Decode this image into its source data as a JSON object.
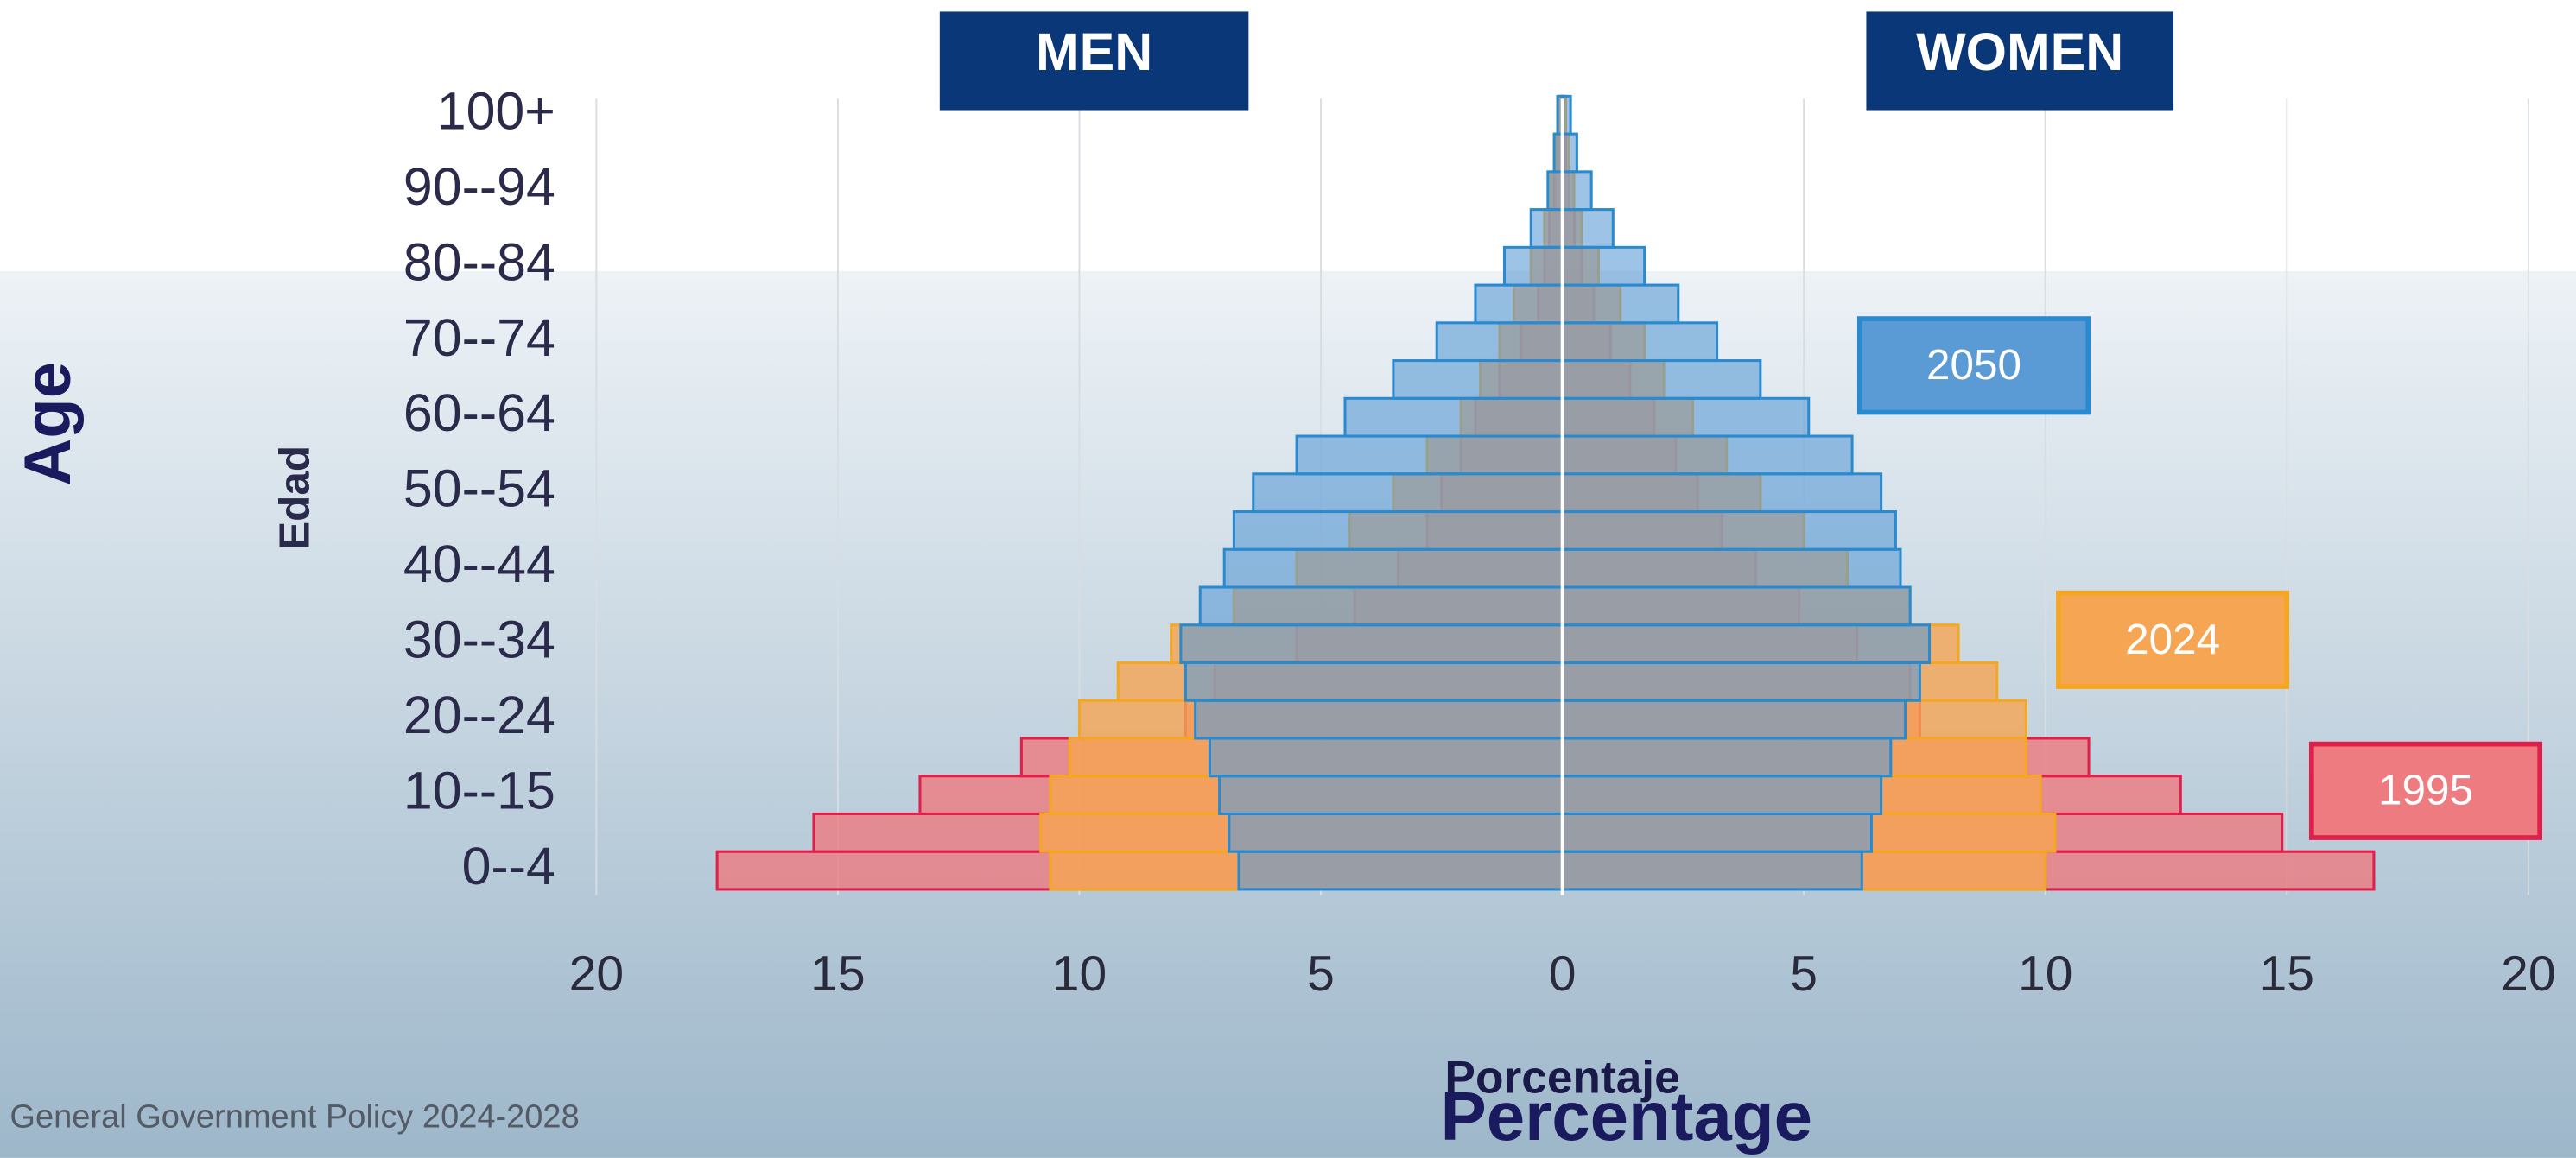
{
  "chart_data": {
    "type": "pyramid",
    "headers": [
      "MEN",
      "WOMEN"
    ],
    "y_label_outer": "Age",
    "y_label": "Edad",
    "x_label": "Porcentaje",
    "x_label_outer": "Percentage",
    "footer": "General Government Policy 2024-2028",
    "categories": [
      "0--4",
      null,
      "10--15",
      null,
      "20--24",
      null,
      "30--34",
      null,
      "40--44",
      null,
      "50--54",
      null,
      "60--64",
      null,
      "70--74",
      null,
      "80--84",
      null,
      "90--94",
      null,
      "100+"
    ],
    "series": [
      {
        "name": "1995",
        "color": "#ee7b80",
        "stroke": "#e0204a",
        "men": [
          17.5,
          15.5,
          13.3,
          11.2,
          7.8,
          7.2,
          5.5,
          4.3,
          3.4,
          2.8,
          2.5,
          2.1,
          1.8,
          1.3,
          0.85,
          0.5,
          0.37,
          0.27,
          0.17,
          0.1,
          0.07
        ],
        "women": [
          16.8,
          14.9,
          12.8,
          10.9,
          7.4,
          7.2,
          6.1,
          4.9,
          4.0,
          3.3,
          2.8,
          2.35,
          1.9,
          1.4,
          1.0,
          0.65,
          0.4,
          0.25,
          0.14,
          0.07,
          0.04
        ]
      },
      {
        "name": "2024",
        "color": "#f6a552",
        "stroke": "#f5a623",
        "men": [
          10.6,
          10.8,
          10.6,
          10.2,
          10.0,
          9.2,
          8.1,
          6.8,
          5.5,
          4.4,
          3.5,
          2.8,
          2.1,
          1.7,
          1.3,
          1.0,
          0.65,
          0.37,
          0.24,
          0.14,
          0.07
        ],
        "women": [
          10.0,
          10.2,
          9.9,
          9.6,
          9.6,
          9.0,
          8.2,
          7.2,
          5.9,
          5.0,
          4.1,
          3.4,
          2.7,
          2.1,
          1.7,
          1.2,
          0.75,
          0.4,
          0.24,
          0.14,
          0.07
        ]
      },
      {
        "name": "2050",
        "color": "#5b9bd5",
        "stroke": "#2a8ad0",
        "men": [
          6.7,
          6.9,
          7.1,
          7.3,
          7.6,
          7.8,
          7.9,
          7.5,
          7.0,
          6.8,
          6.4,
          5.5,
          4.5,
          3.5,
          2.6,
          1.8,
          1.2,
          0.65,
          0.3,
          0.17,
          0.1
        ],
        "women": [
          6.2,
          6.4,
          6.6,
          6.8,
          7.1,
          7.4,
          7.6,
          7.2,
          7.0,
          6.9,
          6.6,
          6.0,
          5.1,
          4.1,
          3.2,
          2.4,
          1.7,
          1.05,
          0.6,
          0.3,
          0.17
        ]
      }
    ],
    "xlim": [
      -20,
      20
    ],
    "xticks": [
      {
        "value": -20,
        "label": "20"
      },
      {
        "value": -15,
        "label": "15"
      },
      {
        "value": -10,
        "label": "10"
      },
      {
        "value": -5,
        "label": "5"
      },
      0,
      5,
      10,
      15,
      20
    ],
    "grid": true
  }
}
